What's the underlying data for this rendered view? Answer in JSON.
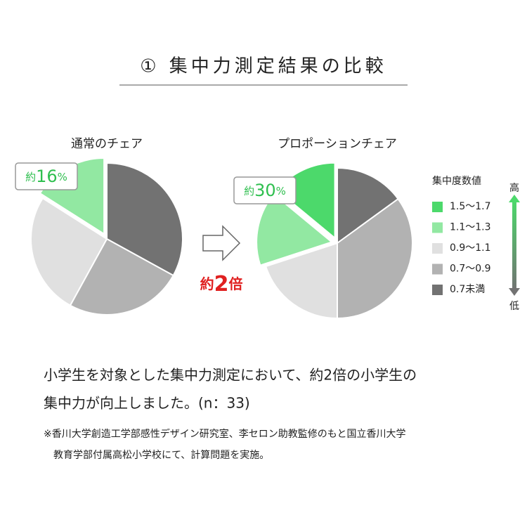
{
  "title": "① 集中力測定結果の比較",
  "legend": {
    "title": "集中度数値",
    "items": [
      {
        "name": "1.5～1.7",
        "color": "#4cd96b"
      },
      {
        "name": "1.1～1.3",
        "color": "#92e8a2"
      },
      {
        "name": "0.9～1.1",
        "color": "#e0e0e0"
      },
      {
        "name": "0.7～0.9",
        "color": "#b2b2b2"
      },
      {
        "name": "0.7未満",
        "color": "#727272"
      }
    ],
    "high": "高",
    "low": "低"
  },
  "chart_data": [
    {
      "type": "pie",
      "title": "通常のチェア",
      "values": [
        0,
        16,
        26,
        25,
        33
      ],
      "annotation": {
        "prefix": "約",
        "number": "16",
        "suffix": "%"
      }
    },
    {
      "type": "pie",
      "title": "プロポーションチェア",
      "values": [
        14,
        16,
        20,
        35,
        15
      ],
      "annotation": {
        "prefix": "約",
        "number": "30",
        "suffix": "%"
      }
    }
  ],
  "comparison": {
    "prefix": "約",
    "number": "2",
    "suffix": "倍"
  },
  "caption": [
    "小学生を対象とした集中力測定において、約2倍の小学生の",
    "集中力が向上しました。(n：33)"
  ],
  "footnote": [
    "※香川大学創造工学部感性デザイン研究室、李セロン助教監修のもと国立香川大学",
    "教育学部付属高松小学校にて、計算問題を実施。"
  ]
}
